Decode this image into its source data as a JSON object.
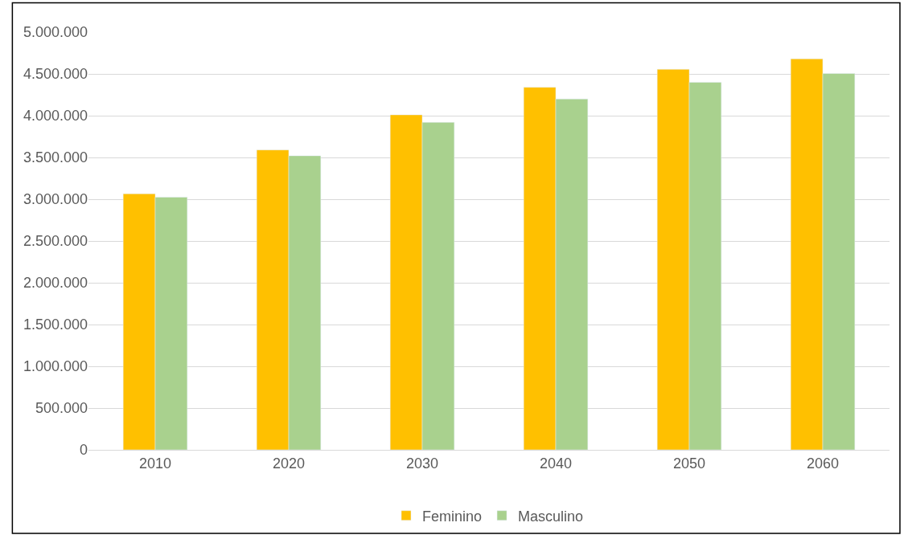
{
  "chart_data": {
    "type": "bar",
    "categories": [
      "2010",
      "2020",
      "2030",
      "2040",
      "2050",
      "2060"
    ],
    "series": [
      {
        "name": "Feminino",
        "color": "#ffc000",
        "values": [
          3065000,
          3590000,
          4010000,
          4340000,
          4555000,
          4680000
        ]
      },
      {
        "name": "Masculino",
        "color": "#a9d18e",
        "values": [
          3025000,
          3520000,
          3920000,
          4200000,
          4400000,
          4505000
        ]
      }
    ],
    "ylim": [
      0,
      5000000
    ],
    "yticks": [
      {
        "value": 0,
        "label": "0"
      },
      {
        "value": 500000,
        "label": "500.000"
      },
      {
        "value": 1000000,
        "label": "1.000.000"
      },
      {
        "value": 1500000,
        "label": "1.500.000"
      },
      {
        "value": 2000000,
        "label": "2.000.000"
      },
      {
        "value": 2500000,
        "label": "2.500.000"
      },
      {
        "value": 3000000,
        "label": "3.000.000"
      },
      {
        "value": 3500000,
        "label": "3.500.000"
      },
      {
        "value": 4000000,
        "label": "4.000.000"
      },
      {
        "value": 4500000,
        "label": "4.500.000"
      },
      {
        "value": 5000000,
        "label": "5.000.000"
      }
    ],
    "grid": "y",
    "legend": "bottom"
  }
}
